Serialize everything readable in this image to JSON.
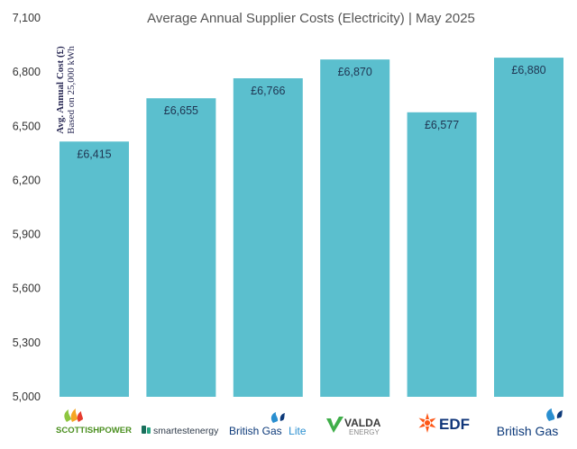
{
  "chart_data": {
    "type": "bar",
    "title": "Average Annual Supplier Costs (Electricity) | May 2025",
    "ylabel_line1": "Avg. Annual Cost (£)",
    "ylabel_line2": "Based on 25,000 kWh",
    "xlabel": "",
    "ylim": [
      5000,
      7100
    ],
    "yticks": [
      "5,000",
      "5,300",
      "5,600",
      "5,900",
      "6,200",
      "6,500",
      "6,800",
      "7,100"
    ],
    "ytick_values": [
      5000,
      5300,
      5600,
      5900,
      6200,
      6500,
      6800,
      7100
    ],
    "categories": [
      "ScottishPower",
      "Smartest Energy",
      "British Gas Lite",
      "Valda Energy",
      "EDF",
      "British Gas"
    ],
    "values": [
      6415,
      6655,
      6766,
      6870,
      6577,
      6880
    ],
    "data_labels": [
      "£6,415",
      "£6,655",
      "£6,766",
      "£6,870",
      "£6,577",
      "£6,880"
    ],
    "grid": false,
    "bar_color": "#5bbfce"
  },
  "logos": {
    "scottishpower": "SCOTTISHPOWER",
    "smartest_energy": "smartestenergy",
    "british_gas_lite_a": "British Gas",
    "british_gas_lite_b": "Lite",
    "valda": "VALDA",
    "valda_sub": "ENERGY",
    "edf": "EDF",
    "british_gas": "British Gas"
  }
}
